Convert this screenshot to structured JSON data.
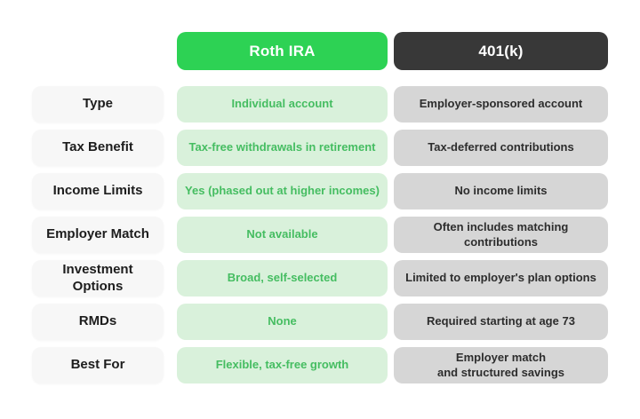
{
  "header": {
    "roth_label": "Roth IRA",
    "k401_label": "401(k)"
  },
  "table": {
    "rows": [
      {
        "label": "Type",
        "roth": "Individual account",
        "k401": "Employer-sponsored account"
      },
      {
        "label": "Tax Benefit",
        "roth": "Tax-free withdrawals in retirement",
        "k401": "Tax-deferred contributions"
      },
      {
        "label": "Income Limits",
        "roth": "Yes (phased out at higher incomes)",
        "k401": "No income limits"
      },
      {
        "label": "Employer Match",
        "roth": "Not available",
        "k401": "Often includes matching\ncontributions"
      },
      {
        "label": "Investment\nOptions",
        "roth": "Broad, self-selected",
        "k401": "Limited to employer's plan options"
      },
      {
        "label": "RMDs",
        "roth": "None",
        "k401": "Required starting at age 73"
      },
      {
        "label": "Best For",
        "roth": "Flexible, tax-free growth",
        "k401": "Employer match\nand structured savings"
      }
    ]
  },
  "colors": {
    "roth_header_bg": "#2dd254",
    "k401_header_bg": "#383838",
    "roth_cell_bg": "#d9f1db",
    "roth_cell_text": "#45bd61",
    "k401_cell_bg": "#d6d6d6",
    "k401_cell_text": "#2d2d2d",
    "label_cell_bg": "#f7f7f7",
    "label_text": "#1d1d1d",
    "header_text": "#ffffff"
  },
  "chart_data": {
    "type": "table",
    "title": "",
    "columns": [
      "",
      "Roth IRA",
      "401(k)"
    ],
    "rows": [
      [
        "Type",
        "Individual account",
        "Employer-sponsored account"
      ],
      [
        "Tax Benefit",
        "Tax-free withdrawals in retirement",
        "Tax-deferred contributions"
      ],
      [
        "Income Limits",
        "Yes (phased out at higher incomes)",
        "No income limits"
      ],
      [
        "Employer Match",
        "Not available",
        "Often includes matching contributions"
      ],
      [
        "Investment Options",
        "Broad, self-selected",
        "Limited to employer's plan options"
      ],
      [
        "RMDs",
        "None",
        "Required starting at age 73"
      ],
      [
        "Best For",
        "Flexible, tax-free growth",
        "Employer match and structured savings"
      ]
    ],
    "legend_position": "none",
    "grid": false
  }
}
